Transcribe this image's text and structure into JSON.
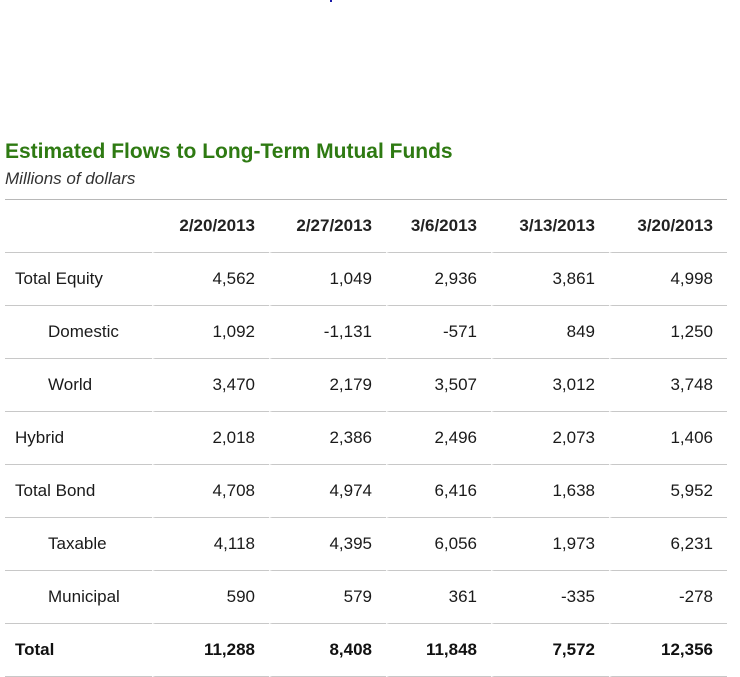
{
  "header": {
    "title": "Estimated Flows to Long-Term Mutual Funds",
    "subtitle": "Millions of dollars"
  },
  "table": {
    "columns": [
      "",
      "2/20/2013",
      "2/27/2013",
      "3/6/2013",
      "3/13/2013",
      "3/20/2013"
    ],
    "rows": [
      {
        "label": "Total Equity",
        "values": [
          "4,562",
          "1,049",
          "2,936",
          "3,861",
          "4,998"
        ]
      },
      {
        "label": "Domestic",
        "values": [
          "1,092",
          "-1,131",
          "-571",
          "849",
          "1,250"
        ]
      },
      {
        "label": "World",
        "values": [
          "3,470",
          "2,179",
          "3,507",
          "3,012",
          "3,748"
        ]
      },
      {
        "label": "Hybrid",
        "values": [
          "2,018",
          "2,386",
          "2,496",
          "2,073",
          "1,406"
        ]
      },
      {
        "label": "Total Bond",
        "values": [
          "4,708",
          "4,974",
          "6,416",
          "1,638",
          "5,952"
        ]
      },
      {
        "label": "Taxable",
        "values": [
          "4,118",
          "4,395",
          "6,056",
          "1,973",
          "6,231"
        ]
      },
      {
        "label": "Municipal",
        "values": [
          "590",
          "579",
          "361",
          "-335",
          "-278"
        ]
      },
      {
        "label": "Total",
        "values": [
          "11,288",
          "8,408",
          "11,848",
          "7,572",
          "12,356"
        ]
      }
    ]
  },
  "colors": {
    "title": "#2e7a12",
    "rule": "#c8c8c8"
  }
}
